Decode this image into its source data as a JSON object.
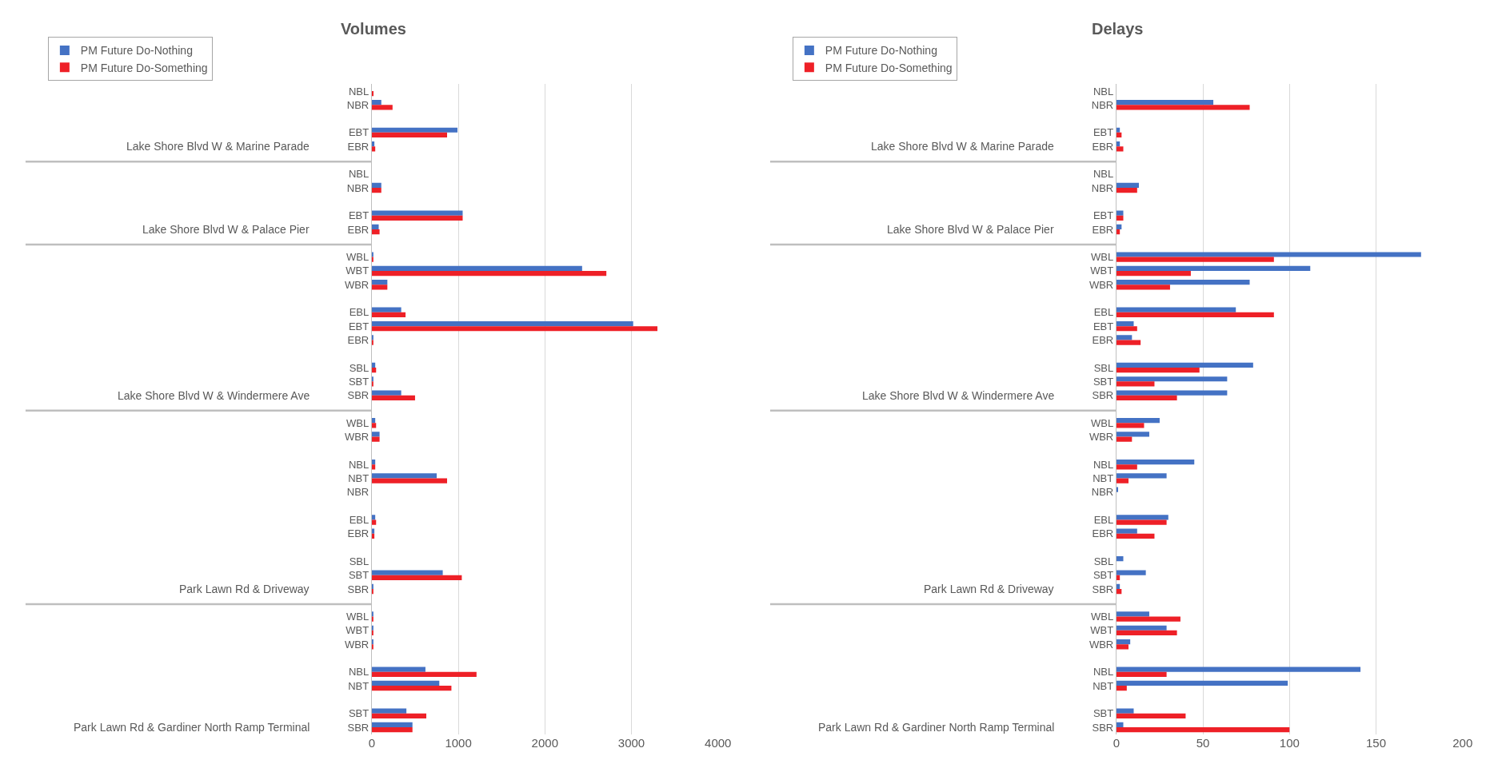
{
  "chart_data": [
    {
      "type": "bar",
      "orientation": "horizontal",
      "title": "Volumes",
      "legend": "top left",
      "grid": "x",
      "categories": [
        "NBL",
        "NBR",
        null,
        "EBT",
        "EBR",
        null,
        "NBL",
        "NBR",
        null,
        "EBT",
        "EBR",
        null,
        "WBL",
        "WBT",
        "WBR",
        null,
        "EBL",
        "EBT",
        "EBR",
        null,
        "SBL",
        "SBT",
        "SBR",
        null,
        "WBL",
        "WBR",
        null,
        "NBL",
        "NBT",
        "NBR",
        null,
        "EBL",
        "EBR",
        null,
        "SBL",
        "SBT",
        "SBR",
        null,
        "WBL",
        "WBT",
        "WBR",
        null,
        "NBL",
        "NBT",
        null,
        "SBT",
        "SBR"
      ],
      "y2_categories": [
        null,
        null,
        null,
        null,
        "Lake Shore Blvd W & Marine Parade",
        null,
        null,
        null,
        null,
        null,
        "Lake Shore Blvd W & Palace Pier",
        null,
        null,
        null,
        null,
        null,
        null,
        null,
        null,
        null,
        null,
        null,
        "Lake Shore Blvd W & Windermere Ave",
        null,
        null,
        null,
        null,
        null,
        null,
        null,
        null,
        null,
        null,
        null,
        null,
        null,
        "Park Lawn Rd & Driveway",
        null,
        null,
        null,
        null,
        null,
        null,
        null,
        null,
        null,
        "Park Lawn Rd & Gardiner North Ramp Terminal"
      ],
      "series": [
        {
          "name": "PM Future Do-Nothing",
          "color": "#4472c4",
          "values": [
            0,
            110,
            null,
            990,
            30,
            null,
            0,
            110,
            null,
            1050,
            80,
            null,
            10,
            2430,
            180,
            null,
            340,
            3020,
            10,
            null,
            40,
            10,
            340,
            null,
            40,
            90,
            null,
            40,
            750,
            0,
            null,
            40,
            30,
            null,
            0,
            820,
            10,
            null,
            10,
            10,
            10,
            null,
            620,
            780,
            null,
            400,
            470
          ]
        },
        {
          "name": "PM Future Do-Something",
          "color": "#ee2027",
          "values": [
            20,
            240,
            null,
            870,
            40,
            null,
            0,
            110,
            null,
            1050,
            90,
            null,
            10,
            2710,
            180,
            null,
            390,
            3300,
            10,
            null,
            50,
            10,
            500,
            null,
            50,
            90,
            null,
            40,
            870,
            0,
            null,
            50,
            30,
            null,
            0,
            1040,
            10,
            null,
            10,
            10,
            10,
            null,
            1210,
            920,
            null,
            630,
            470
          ]
        }
      ],
      "xlim": [
        0,
        4000
      ],
      "xticks": [
        0,
        1000,
        2000,
        3000,
        4000
      ]
    },
    {
      "type": "bar",
      "orientation": "horizontal",
      "title": "Delays",
      "legend": "top left",
      "grid": "x",
      "categories": [
        "NBL",
        "NBR",
        null,
        "EBT",
        "EBR",
        null,
        "NBL",
        "NBR",
        null,
        "EBT",
        "EBR",
        null,
        "WBL",
        "WBT",
        "WBR",
        null,
        "EBL",
        "EBT",
        "EBR",
        null,
        "SBL",
        "SBT",
        "SBR",
        null,
        "WBL",
        "WBR",
        null,
        "NBL",
        "NBT",
        "NBR",
        null,
        "EBL",
        "EBR",
        null,
        "SBL",
        "SBT",
        "SBR",
        null,
        "WBL",
        "WBT",
        "WBR",
        null,
        "NBL",
        "NBT",
        null,
        "SBT",
        "SBR"
      ],
      "y2_categories": [
        null,
        null,
        null,
        null,
        "Lake Shore Blvd W & Marine Parade",
        null,
        null,
        null,
        null,
        null,
        "Lake Shore Blvd W & Palace Pier",
        null,
        null,
        null,
        null,
        null,
        null,
        null,
        null,
        null,
        null,
        null,
        "Lake Shore Blvd W & Windermere Ave",
        null,
        null,
        null,
        null,
        null,
        null,
        null,
        null,
        null,
        null,
        null,
        null,
        null,
        "Park Lawn Rd & Driveway",
        null,
        null,
        null,
        null,
        null,
        null,
        null,
        null,
        null,
        "Park Lawn Rd & Gardiner North Ramp Terminal"
      ],
      "series": [
        {
          "name": "PM Future Do-Nothing",
          "color": "#4472c4",
          "values": [
            0,
            56,
            null,
            2,
            2,
            null,
            0,
            13,
            null,
            4,
            3,
            null,
            176,
            112,
            77,
            null,
            69,
            10,
            9,
            null,
            79,
            64,
            64,
            null,
            25,
            19,
            null,
            45,
            29,
            1,
            null,
            30,
            12,
            null,
            4,
            17,
            2,
            null,
            19,
            29,
            8,
            null,
            141,
            99,
            null,
            10,
            4
          ]
        },
        {
          "name": "PM Future Do-Something",
          "color": "#ee2027",
          "values": [
            0,
            77,
            null,
            3,
            4,
            null,
            0,
            12,
            null,
            4,
            2,
            null,
            91,
            43,
            31,
            null,
            91,
            12,
            14,
            null,
            48,
            22,
            35,
            null,
            16,
            9,
            null,
            12,
            7,
            0,
            null,
            29,
            22,
            null,
            0,
            2,
            3,
            null,
            37,
            35,
            7,
            null,
            29,
            6,
            null,
            40,
            100
          ]
        }
      ],
      "xlim": [
        0,
        200
      ],
      "xticks": [
        0,
        50,
        100,
        150,
        200
      ]
    }
  ]
}
